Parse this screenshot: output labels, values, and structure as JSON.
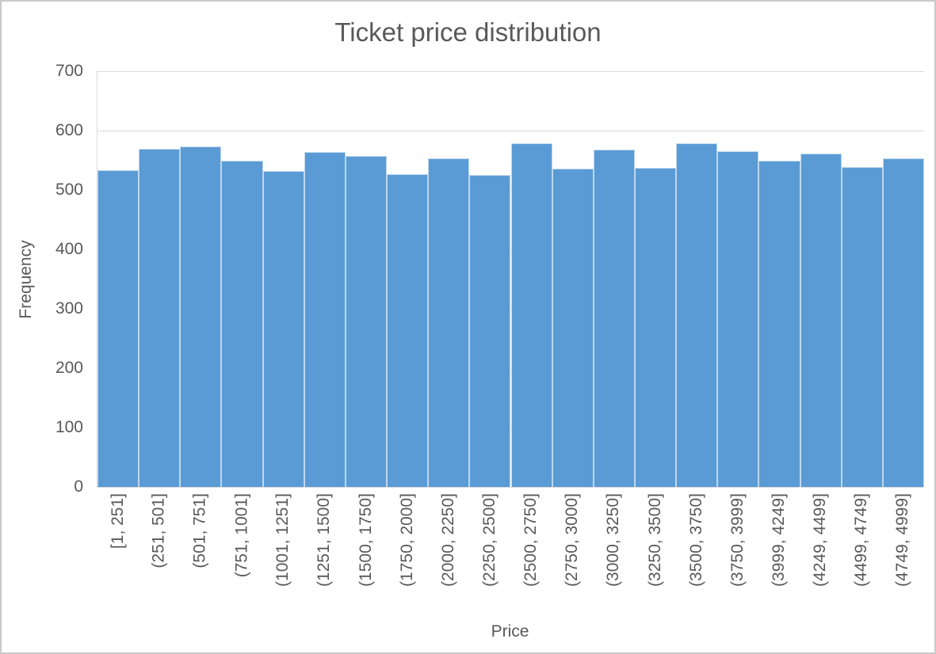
{
  "window": {
    "background": "#ffffff",
    "frame_border_color": "#c9c9c9"
  },
  "chart_data": {
    "type": "bar",
    "chart_kind": "histogram",
    "title": "Ticket price distribution",
    "xlabel": "Price",
    "ylabel": "Frequency",
    "categories": [
      "[1, 251]",
      "(251, 501]",
      "(501, 751]",
      "(751, 1001]",
      "(1001, 1251]",
      "(1251, 1500]",
      "(1500, 1750]",
      "(1750, 2000]",
      "(2000, 2250]",
      "(2250, 2500]",
      "(2500, 2750]",
      "(2750, 3000]",
      "(3000, 3250]",
      "(3250, 3500]",
      "(3500, 3750]",
      "(3750, 3999]",
      "(3999, 4249]",
      "(4249, 4499]",
      "(4499, 4749]",
      "(4749, 4999]"
    ],
    "values": [
      533,
      570,
      573,
      549,
      532,
      564,
      558,
      527,
      554,
      525,
      579,
      536,
      568,
      538,
      579,
      565,
      550,
      562,
      539,
      554
    ],
    "ylim": [
      0,
      700
    ],
    "yticks": [
      0,
      100,
      200,
      300,
      400,
      500,
      600,
      700
    ],
    "grid": "horizontal",
    "legend": "none",
    "bar_color": "#5b9bd5",
    "bar_border_color": "#bdd7ee",
    "gridline_color": "#d9d9d9",
    "axis_line_color": "#d9d9d9",
    "text_color": "#595959"
  }
}
